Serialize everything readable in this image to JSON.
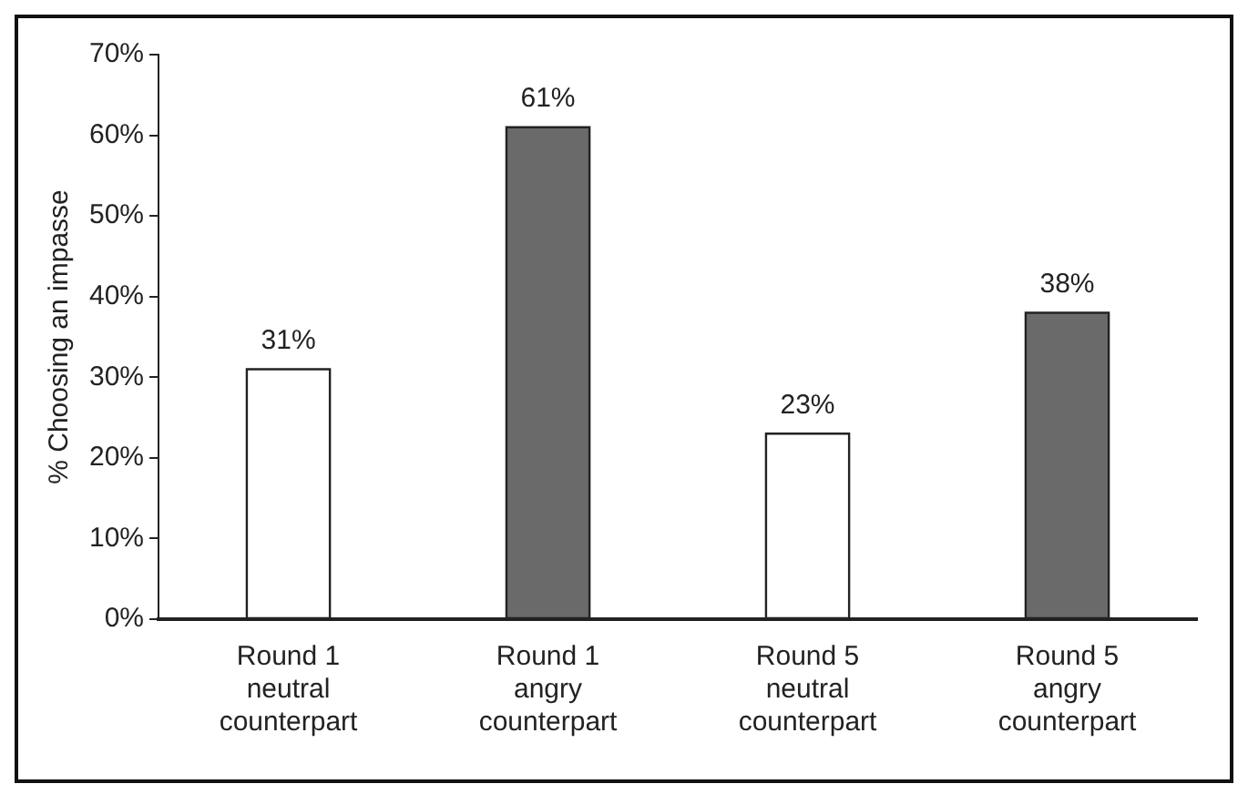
{
  "chart_data": {
    "type": "bar",
    "ylabel": "% Choosing an impasse",
    "categories": [
      "Round 1\nneutral\ncounterpart",
      "Round 1\nangry\ncounterpart",
      "Round 5\nneutral\ncounterpart",
      "Round 5\nangry\ncounterpart"
    ],
    "values": [
      31,
      61,
      23,
      38
    ],
    "colors": [
      "#ffffff",
      "#6a6a6a",
      "#ffffff",
      "#6a6a6a"
    ],
    "value_labels": [
      "31%",
      "61%",
      "23%",
      "38%"
    ],
    "ylim": [
      0,
      70
    ],
    "yticks": [
      {
        "value": 0,
        "label": "0%"
      },
      {
        "value": 10,
        "label": "10%"
      },
      {
        "value": 20,
        "label": "20%"
      },
      {
        "value": 30,
        "label": "30%"
      },
      {
        "value": 40,
        "label": "40%"
      },
      {
        "value": 50,
        "label": "50%"
      },
      {
        "value": 60,
        "label": "60%"
      },
      {
        "value": 70,
        "label": "70%"
      }
    ],
    "grid": false,
    "legend": false
  }
}
